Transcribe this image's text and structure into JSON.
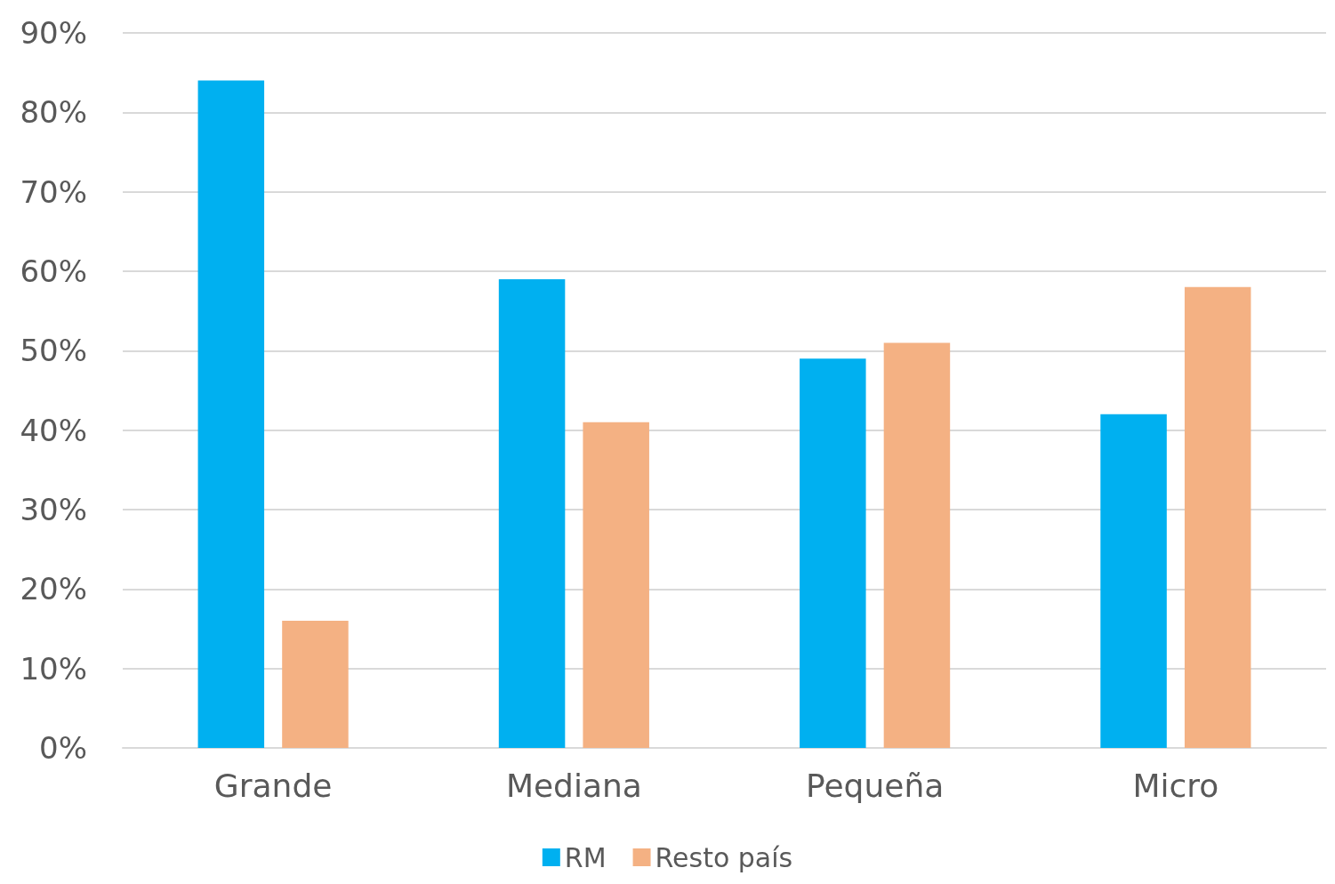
{
  "chart_data": {
    "type": "bar",
    "categories": [
      "Grande",
      "Mediana",
      "Pequeña",
      "Micro"
    ],
    "series": [
      {
        "name": "RM",
        "color": "#00b0f0",
        "values": [
          84,
          59,
          49,
          42
        ]
      },
      {
        "name": "Resto país",
        "color": "#f4b183",
        "values": [
          16,
          41,
          51,
          58
        ]
      }
    ],
    "ylim": [
      0,
      90
    ],
    "yticks": [
      {
        "value": 0,
        "label": "0%"
      },
      {
        "value": 10,
        "label": "10%"
      },
      {
        "value": 20,
        "label": "20%"
      },
      {
        "value": 30,
        "label": "30%"
      },
      {
        "value": 40,
        "label": "40%"
      },
      {
        "value": 50,
        "label": "50%"
      },
      {
        "value": 60,
        "label": "60%"
      },
      {
        "value": 70,
        "label": "70%"
      },
      {
        "value": 80,
        "label": "80%"
      },
      {
        "value": 90,
        "label": "90%"
      }
    ],
    "grid": "y",
    "legend": "bottom"
  }
}
